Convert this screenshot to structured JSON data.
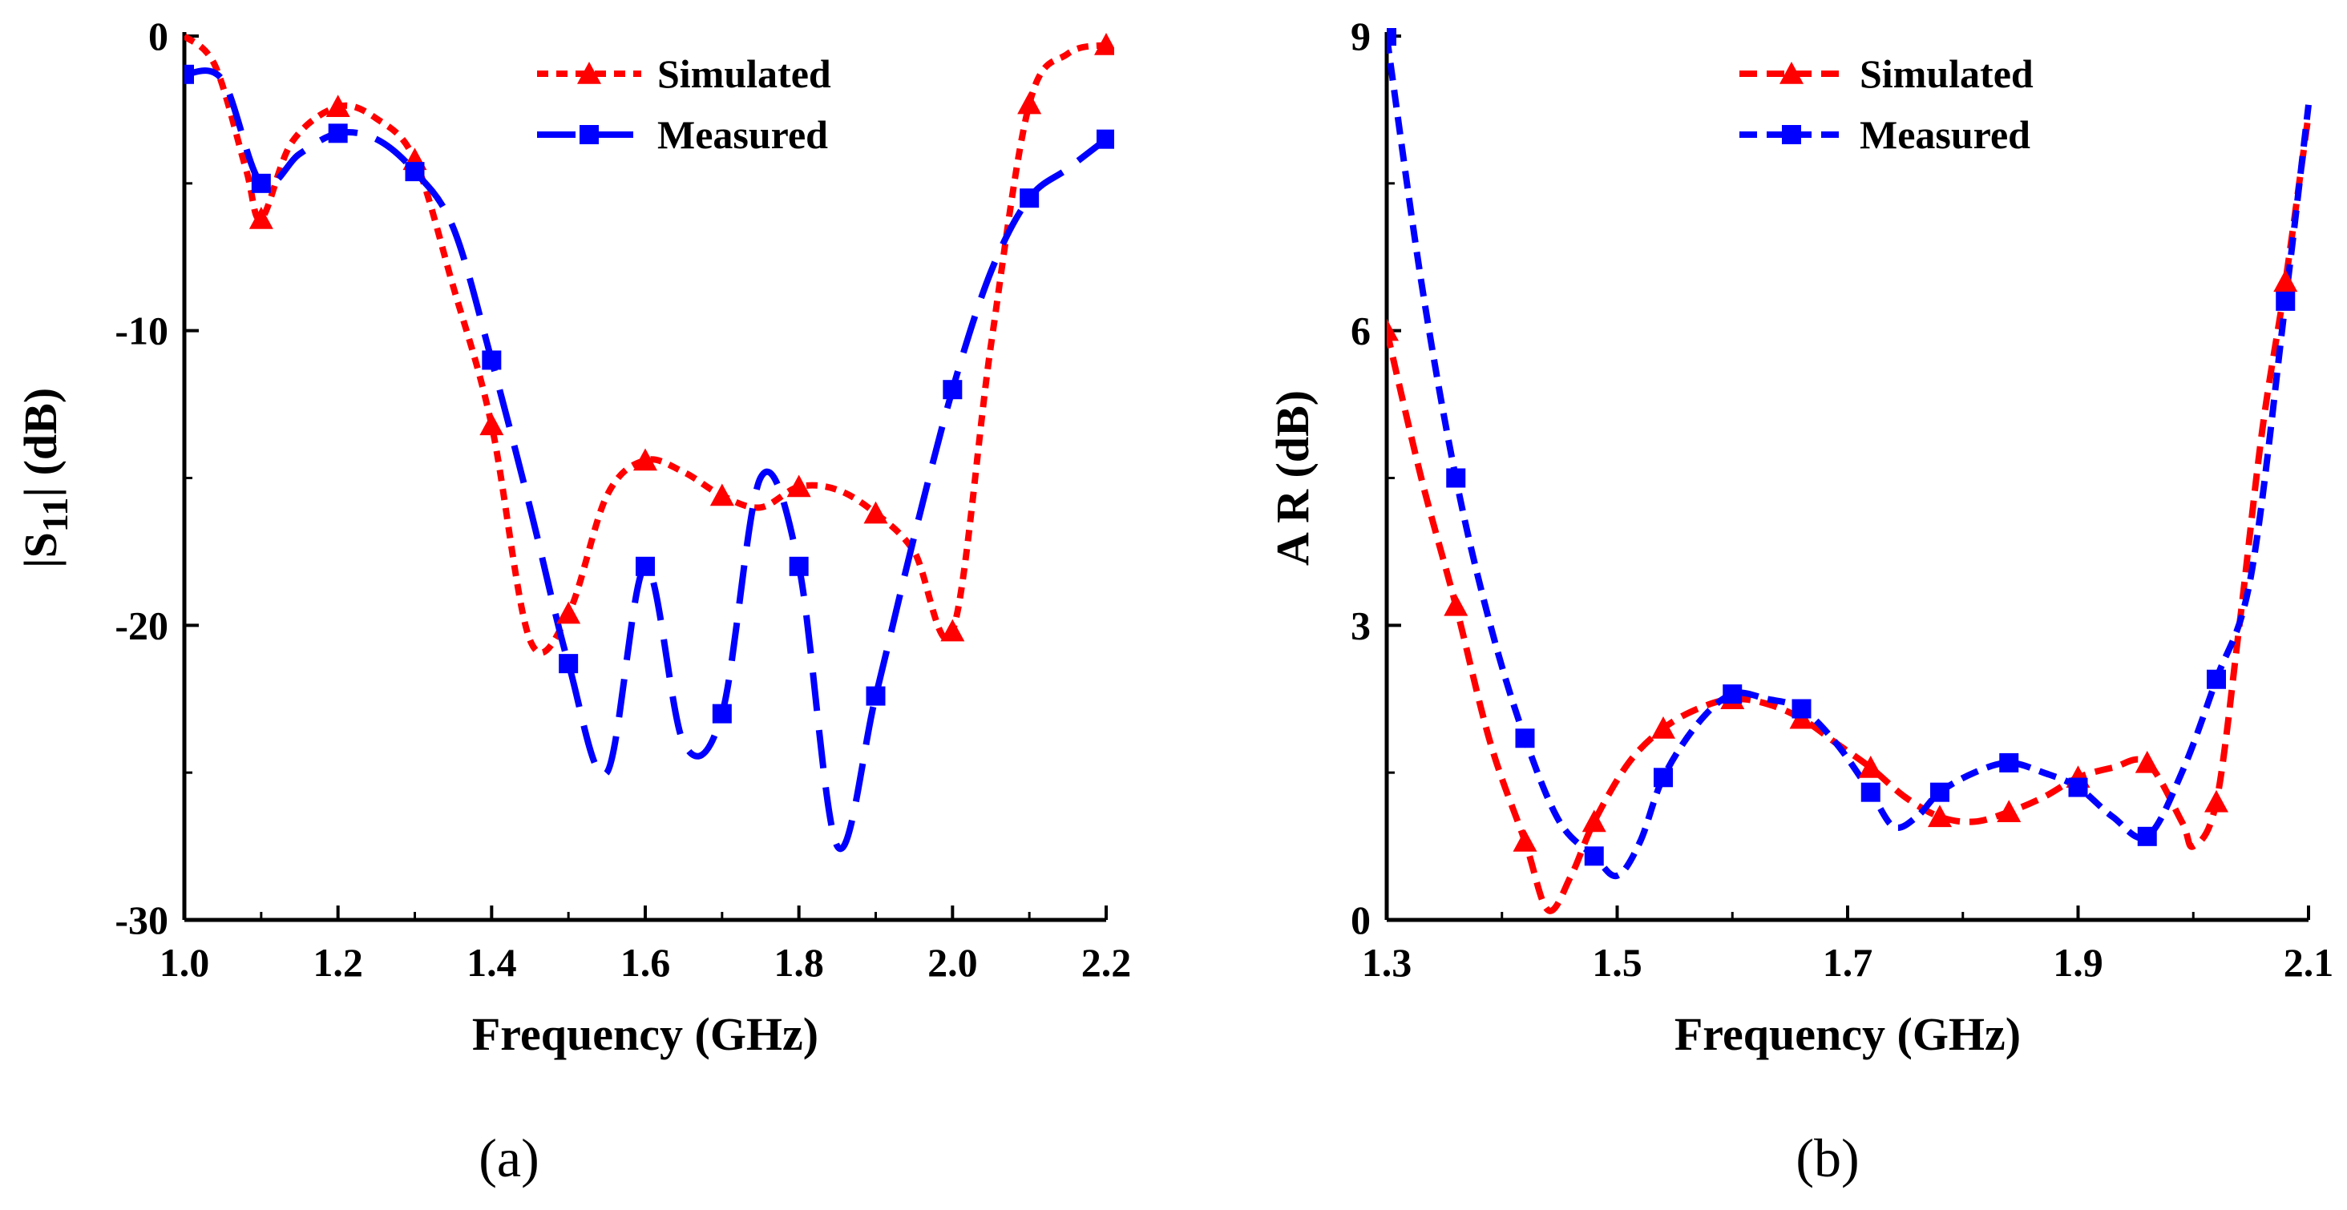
{
  "chart_data": [
    {
      "type": "line",
      "panel_label": "(a)",
      "xlabel": "Frequency (GHz)",
      "ylabel": "|S11| (dB)",
      "ylabel_parts": [
        "|S",
        "11",
        "| (dB)"
      ],
      "xlim": [
        1.0,
        2.2
      ],
      "ylim": [
        -30,
        0
      ],
      "xticks": [
        1.0,
        1.2,
        1.4,
        1.6,
        1.8,
        2.0,
        2.2
      ],
      "xtick_labels": [
        "1.0",
        "1.2",
        "1.4",
        "1.6",
        "1.8",
        "2.0",
        "2.2"
      ],
      "yticks": [
        -30,
        -20,
        -10,
        0
      ],
      "ytick_labels": [
        "-30",
        "-20",
        "-10",
        "0"
      ],
      "legend": {
        "position": "top-right",
        "entries": [
          "Simulated",
          "Measured"
        ]
      },
      "series": [
        {
          "name": "Simulated",
          "color": "#ff0000",
          "marker": "triangle",
          "line_style": "dotted",
          "x": [
            1.0,
            1.04,
            1.08,
            1.1,
            1.14,
            1.2,
            1.25,
            1.3,
            1.35,
            1.4,
            1.45,
            1.5,
            1.55,
            1.6,
            1.65,
            1.7,
            1.75,
            1.8,
            1.85,
            1.9,
            1.95,
            2.0,
            2.05,
            2.1,
            2.15,
            2.2
          ],
          "y": [
            0,
            -1,
            -4.5,
            -6.2,
            -3.6,
            -2.4,
            -2.8,
            -4.2,
            -8.5,
            -13.2,
            -20.5,
            -19.6,
            -15.6,
            -14.4,
            -14.8,
            -15.6,
            -16.0,
            -15.3,
            -15.4,
            -16.2,
            -17.5,
            -20.2,
            -10.5,
            -2.3,
            -0.6,
            -0.3
          ],
          "marker_x": [
            1.1,
            1.2,
            1.3,
            1.4,
            1.5,
            1.6,
            1.7,
            1.8,
            1.9,
            2.0,
            2.1,
            2.2
          ],
          "marker_y": [
            -6.2,
            -2.4,
            -4.2,
            -13.2,
            -19.6,
            -14.4,
            -15.6,
            -15.3,
            -16.2,
            -20.2,
            -2.3,
            -0.3
          ]
        },
        {
          "name": "Measured",
          "color": "#0000ff",
          "marker": "square",
          "line_style": "dashed",
          "x": [
            1.0,
            1.05,
            1.1,
            1.15,
            1.2,
            1.25,
            1.3,
            1.35,
            1.4,
            1.45,
            1.5,
            1.55,
            1.6,
            1.65,
            1.7,
            1.75,
            1.8,
            1.85,
            1.9,
            1.95,
            2.0,
            2.05,
            2.1,
            2.15,
            2.2
          ],
          "y": [
            -1.3,
            -1.5,
            -5.0,
            -4.0,
            -3.3,
            -3.5,
            -4.6,
            -6.5,
            -11.0,
            -16.0,
            -21.3,
            -25.0,
            -18.0,
            -24.0,
            -23.0,
            -15.0,
            -18.0,
            -27.5,
            -22.4,
            -17.0,
            -12.0,
            -8.0,
            -5.5,
            -4.5,
            -3.5
          ],
          "marker_x": [
            1.0,
            1.1,
            1.2,
            1.3,
            1.4,
            1.5,
            1.6,
            1.7,
            1.8,
            1.9,
            2.0,
            2.1,
            2.2
          ],
          "marker_y": [
            -1.3,
            -5.0,
            -3.3,
            -4.6,
            -11.0,
            -21.3,
            -18.0,
            -23.0,
            -18.0,
            -22.4,
            -12.0,
            -5.5,
            -3.5
          ]
        }
      ]
    },
    {
      "type": "line",
      "panel_label": "(b)",
      "xlabel": "Frequency (GHz)",
      "ylabel": "A R (dB)",
      "xlim": [
        1.3,
        2.1
      ],
      "ylim": [
        0,
        9
      ],
      "xticks": [
        1.3,
        1.5,
        1.7,
        1.9,
        2.1
      ],
      "xtick_labels": [
        "1.3",
        "1.5",
        "1.7",
        "1.9",
        "2.1"
      ],
      "yticks": [
        0,
        3,
        6,
        9
      ],
      "ytick_labels": [
        "0",
        "3",
        "6",
        "9"
      ],
      "legend": {
        "position": "top-right",
        "entries": [
          "Simulated",
          "Measured"
        ]
      },
      "series": [
        {
          "name": "Simulated",
          "color": "#ff0000",
          "marker": "triangle",
          "line_style": "dashed",
          "x": [
            1.3,
            1.33,
            1.36,
            1.39,
            1.42,
            1.44,
            1.46,
            1.48,
            1.51,
            1.54,
            1.57,
            1.6,
            1.63,
            1.66,
            1.69,
            1.72,
            1.75,
            1.78,
            1.81,
            1.84,
            1.87,
            1.9,
            1.93,
            1.96,
            1.99,
            2.0,
            2.02,
            2.04,
            2.06,
            2.08,
            2.1
          ],
          "y": [
            6.0,
            4.5,
            3.2,
            1.8,
            0.8,
            0.1,
            0.45,
            1.0,
            1.6,
            1.95,
            2.15,
            2.25,
            2.2,
            2.05,
            1.8,
            1.55,
            1.25,
            1.05,
            1.0,
            1.1,
            1.25,
            1.45,
            1.55,
            1.6,
            1.0,
            0.75,
            1.2,
            3.0,
            5.0,
            6.5,
            8.2
          ],
          "marker_x": [
            1.3,
            1.36,
            1.42,
            1.48,
            1.54,
            1.6,
            1.66,
            1.72,
            1.78,
            1.84,
            1.9,
            1.96,
            2.02,
            2.08
          ],
          "marker_y": [
            6.0,
            3.2,
            0.8,
            1.0,
            1.95,
            2.25,
            2.05,
            1.55,
            1.05,
            1.1,
            1.45,
            1.6,
            1.2,
            6.5
          ]
        },
        {
          "name": "Measured",
          "color": "#0000ff",
          "marker": "square",
          "line_style": "dashed",
          "x": [
            1.3,
            1.33,
            1.36,
            1.39,
            1.42,
            1.45,
            1.48,
            1.5,
            1.52,
            1.54,
            1.57,
            1.6,
            1.63,
            1.66,
            1.69,
            1.72,
            1.74,
            1.76,
            1.78,
            1.81,
            1.84,
            1.87,
            1.9,
            1.93,
            1.96,
            1.99,
            2.02,
            2.05,
            2.08,
            2.1
          ],
          "y": [
            9.0,
            6.5,
            4.5,
            3.0,
            1.85,
            1.0,
            0.65,
            0.45,
            0.8,
            1.45,
            2.0,
            2.3,
            2.25,
            2.15,
            1.8,
            1.3,
            0.95,
            1.05,
            1.3,
            1.5,
            1.6,
            1.5,
            1.35,
            1.05,
            0.85,
            1.5,
            2.45,
            3.5,
            6.3,
            8.3
          ],
          "marker_x": [
            1.3,
            1.36,
            1.42,
            1.48,
            1.54,
            1.6,
            1.66,
            1.72,
            1.78,
            1.84,
            1.9,
            1.96,
            2.02,
            2.08
          ],
          "marker_y": [
            9.0,
            4.5,
            1.85,
            0.65,
            1.45,
            2.3,
            2.15,
            1.3,
            1.3,
            1.6,
            1.35,
            0.85,
            2.45,
            6.3
          ]
        }
      ]
    }
  ]
}
